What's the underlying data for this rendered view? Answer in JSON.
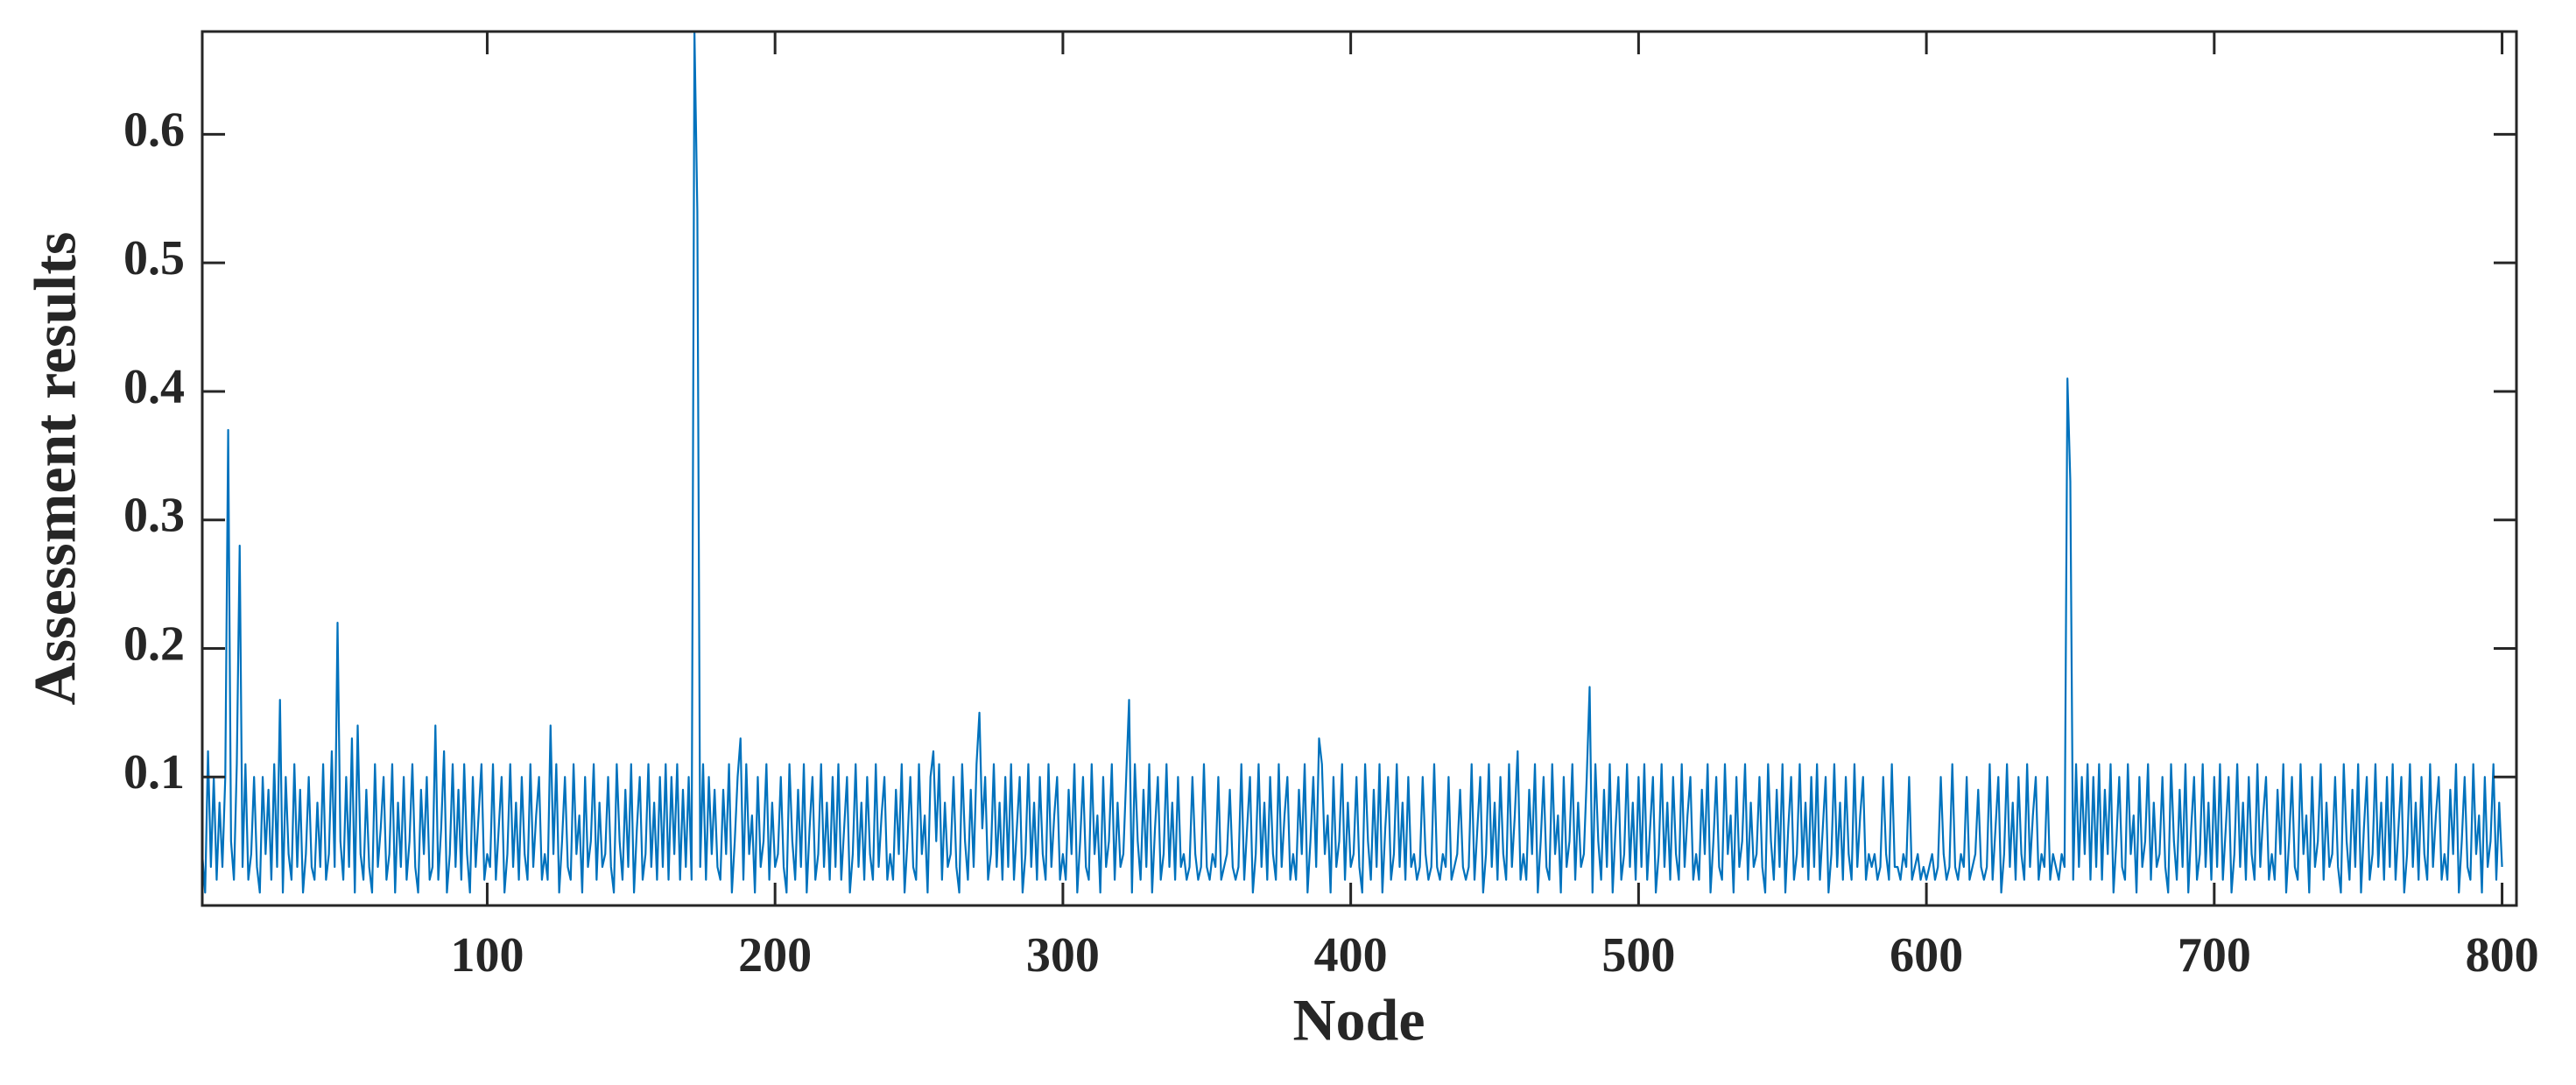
{
  "chart_data": {
    "type": "line",
    "xlabel": "Node",
    "ylabel": "Assessment results",
    "color": "#0072bd",
    "xlim": [
      1,
      805
    ],
    "ylim": [
      0,
      0.68
    ],
    "xticks": [
      100,
      200,
      300,
      400,
      500,
      600,
      700,
      800
    ],
    "yticks": [
      0.1,
      0.2,
      0.3,
      0.4,
      0.5,
      0.6
    ],
    "x": [
      1,
      2,
      3,
      4,
      5,
      6,
      7,
      8,
      9,
      10,
      11,
      12,
      13,
      14,
      15,
      16,
      17,
      18,
      19,
      20,
      21,
      22,
      23,
      24,
      25,
      26,
      27,
      28,
      29,
      30,
      31,
      32,
      33,
      34,
      35,
      36,
      37,
      38,
      39,
      40,
      41,
      42,
      43,
      44,
      45,
      46,
      47,
      48,
      49,
      50,
      51,
      52,
      53,
      54,
      55,
      56,
      57,
      58,
      59,
      60,
      61,
      62,
      63,
      64,
      65,
      66,
      67,
      68,
      69,
      70,
      71,
      72,
      73,
      74,
      75,
      76,
      77,
      78,
      79,
      80,
      81,
      82,
      83,
      84,
      85,
      86,
      87,
      88,
      89,
      90,
      91,
      92,
      93,
      94,
      95,
      96,
      97,
      98,
      99,
      100,
      101,
      102,
      103,
      104,
      105,
      106,
      107,
      108,
      109,
      110,
      111,
      112,
      113,
      114,
      115,
      116,
      117,
      118,
      119,
      120,
      121,
      122,
      123,
      124,
      125,
      126,
      127,
      128,
      129,
      130,
      131,
      132,
      133,
      134,
      135,
      136,
      137,
      138,
      139,
      140,
      141,
      142,
      143,
      144,
      145,
      146,
      147,
      148,
      149,
      150,
      151,
      152,
      153,
      154,
      155,
      156,
      157,
      158,
      159,
      160,
      161,
      162,
      163,
      164,
      165,
      166,
      167,
      168,
      169,
      170,
      171,
      172,
      173,
      174,
      175,
      176,
      177,
      178,
      179,
      180,
      181,
      182,
      183,
      184,
      185,
      186,
      187,
      188,
      189,
      190,
      191,
      192,
      193,
      194,
      195,
      196,
      197,
      198,
      199,
      200,
      201,
      202,
      203,
      204,
      205,
      206,
      207,
      208,
      209,
      210,
      211,
      212,
      213,
      214,
      215,
      216,
      217,
      218,
      219,
      220,
      221,
      222,
      223,
      224,
      225,
      226,
      227,
      228,
      229,
      230,
      231,
      232,
      233,
      234,
      235,
      236,
      237,
      238,
      239,
      240,
      241,
      242,
      243,
      244,
      245,
      246,
      247,
      248,
      249,
      250,
      251,
      252,
      253,
      254,
      255,
      256,
      257,
      258,
      259,
      260,
      261,
      262,
      263,
      264,
      265,
      266,
      267,
      268,
      269,
      270,
      271,
      272,
      273,
      274,
      275,
      276,
      277,
      278,
      279,
      280,
      281,
      282,
      283,
      284,
      285,
      286,
      287,
      288,
      289,
      290,
      291,
      292,
      293,
      294,
      295,
      296,
      297,
      298,
      299,
      300,
      301,
      302,
      303,
      304,
      305,
      306,
      307,
      308,
      309,
      310,
      311,
      312,
      313,
      314,
      315,
      316,
      317,
      318,
      319,
      320,
      321,
      322,
      323,
      324,
      325,
      326,
      327,
      328,
      329,
      330,
      331,
      332,
      333,
      334,
      335,
      336,
      337,
      338,
      339,
      340,
      341,
      342,
      343,
      344,
      345,
      346,
      347,
      348,
      349,
      350,
      351,
      352,
      353,
      354,
      355,
      356,
      357,
      358,
      359,
      360,
      361,
      362,
      363,
      364,
      365,
      366,
      367,
      368,
      369,
      370,
      371,
      372,
      373,
      374,
      375,
      376,
      377,
      378,
      379,
      380,
      381,
      382,
      383,
      384,
      385,
      386,
      387,
      388,
      389,
      390,
      391,
      392,
      393,
      394,
      395,
      396,
      397,
      398,
      399,
      400,
      401,
      402,
      403,
      404,
      405,
      406,
      407,
      408,
      409,
      410,
      411,
      412,
      413,
      414,
      415,
      416,
      417,
      418,
      419,
      420,
      421,
      422,
      423,
      424,
      425,
      426,
      427,
      428,
      429,
      430,
      431,
      432,
      433,
      434,
      435,
      436,
      437,
      438,
      439,
      440,
      441,
      442,
      443,
      444,
      445,
      446,
      447,
      448,
      449,
      450,
      451,
      452,
      453,
      454,
      455,
      456,
      457,
      458,
      459,
      460,
      461,
      462,
      463,
      464,
      465,
      466,
      467,
      468,
      469,
      470,
      471,
      472,
      473,
      474,
      475,
      476,
      477,
      478,
      479,
      480,
      481,
      482,
      483,
      484,
      485,
      486,
      487,
      488,
      489,
      490,
      491,
      492,
      493,
      494,
      495,
      496,
      497,
      498,
      499,
      500,
      501,
      502,
      503,
      504,
      505,
      506,
      507,
      508,
      509,
      510,
      511,
      512,
      513,
      514,
      515,
      516,
      517,
      518,
      519,
      520,
      521,
      522,
      523,
      524,
      525,
      526,
      527,
      528,
      529,
      530,
      531,
      532,
      533,
      534,
      535,
      536,
      537,
      538,
      539,
      540,
      541,
      542,
      543,
      544,
      545,
      546,
      547,
      548,
      549,
      550,
      551,
      552,
      553,
      554,
      555,
      556,
      557,
      558,
      559,
      560,
      561,
      562,
      563,
      564,
      565,
      566,
      567,
      568,
      569,
      570,
      571,
      572,
      573,
      574,
      575,
      576,
      577,
      578,
      579,
      580,
      581,
      582,
      583,
      584,
      585,
      586,
      587,
      588,
      589,
      590,
      591,
      592,
      593,
      594,
      595,
      596,
      597,
      598,
      599,
      600,
      601,
      602,
      603,
      604,
      605,
      606,
      607,
      608,
      609,
      610,
      611,
      612,
      613,
      614,
      615,
      616,
      617,
      618,
      619,
      620,
      621,
      622,
      623,
      624,
      625,
      626,
      627,
      628,
      629,
      630,
      631,
      632,
      633,
      634,
      635,
      636,
      637,
      638,
      639,
      640,
      641,
      642,
      643,
      644,
      645,
      646,
      647,
      648,
      649,
      650,
      651,
      652,
      653,
      654,
      655,
      656,
      657,
      658,
      659,
      660,
      661,
      662,
      663,
      664,
      665,
      666,
      667,
      668,
      669,
      670,
      671,
      672,
      673,
      674,
      675,
      676,
      677,
      678,
      679,
      680,
      681,
      682,
      683,
      684,
      685,
      686,
      687,
      688,
      689,
      690,
      691,
      692,
      693,
      694,
      695,
      696,
      697,
      698,
      699,
      700,
      701,
      702,
      703,
      704,
      705,
      706,
      707,
      708,
      709,
      710,
      711,
      712,
      713,
      714,
      715,
      716,
      717,
      718,
      719,
      720,
      721,
      722,
      723,
      724,
      725,
      726,
      727,
      728,
      729,
      730,
      731,
      732,
      733,
      734,
      735,
      736,
      737,
      738,
      739,
      740,
      741,
      742,
      743,
      744,
      745,
      746,
      747,
      748,
      749,
      750,
      751,
      752,
      753,
      754,
      755,
      756,
      757,
      758,
      759,
      760,
      761,
      762,
      763,
      764,
      765,
      766,
      767,
      768,
      769,
      770,
      771,
      772,
      773,
      774,
      775,
      776,
      777,
      778,
      779,
      780,
      781,
      782,
      783,
      784,
      785,
      786,
      787,
      788,
      789,
      790,
      791,
      792,
      793,
      794,
      795,
      796,
      797,
      798,
      799,
      800
    ],
    "values": [
      0.04,
      0.01,
      0.12,
      0.03,
      0.1,
      0.02,
      0.08,
      0.03,
      0.1,
      0.37,
      0.05,
      0.02,
      0.11,
      0.28,
      0.03,
      0.11,
      0.02,
      0.04,
      0.1,
      0.03,
      0.01,
      0.1,
      0.04,
      0.09,
      0.02,
      0.11,
      0.03,
      0.16,
      0.01,
      0.1,
      0.04,
      0.02,
      0.11,
      0.03,
      0.09,
      0.01,
      0.04,
      0.1,
      0.03,
      0.02,
      0.08,
      0.03,
      0.11,
      0.02,
      0.04,
      0.12,
      0.03,
      0.22,
      0.05,
      0.02,
      0.1,
      0.03,
      0.13,
      0.01,
      0.14,
      0.04,
      0.02,
      0.09,
      0.03,
      0.01,
      0.11,
      0.03,
      0.06,
      0.1,
      0.02,
      0.04,
      0.11,
      0.01,
      0.08,
      0.03,
      0.1,
      0.02,
      0.05,
      0.11,
      0.03,
      0.01,
      0.09,
      0.04,
      0.1,
      0.02,
      0.03,
      0.14,
      0.02,
      0.06,
      0.12,
      0.01,
      0.04,
      0.11,
      0.03,
      0.09,
      0.02,
      0.11,
      0.04,
      0.01,
      0.1,
      0.03,
      0.07,
      0.11,
      0.02,
      0.04,
      0.03,
      0.11,
      0.02,
      0.06,
      0.1,
      0.01,
      0.04,
      0.11,
      0.03,
      0.08,
      0.02,
      0.1,
      0.04,
      0.02,
      0.11,
      0.03,
      0.07,
      0.1,
      0.02,
      0.04,
      0.02,
      0.14,
      0.04,
      0.11,
      0.01,
      0.05,
      0.1,
      0.03,
      0.02,
      0.11,
      0.04,
      0.07,
      0.01,
      0.1,
      0.03,
      0.05,
      0.11,
      0.02,
      0.08,
      0.03,
      0.04,
      0.1,
      0.03,
      0.01,
      0.11,
      0.05,
      0.02,
      0.09,
      0.03,
      0.11,
      0.01,
      0.06,
      0.1,
      0.02,
      0.04,
      0.11,
      0.03,
      0.08,
      0.02,
      0.1,
      0.03,
      0.11,
      0.02,
      0.1,
      0.04,
      0.11,
      0.02,
      0.09,
      0.03,
      0.1,
      0.02,
      0.68,
      0.54,
      0.03,
      0.11,
      0.02,
      0.1,
      0.04,
      0.09,
      0.03,
      0.02,
      0.09,
      0.04,
      0.11,
      0.01,
      0.05,
      0.1,
      0.13,
      0.02,
      0.11,
      0.04,
      0.07,
      0.01,
      0.1,
      0.03,
      0.05,
      0.11,
      0.02,
      0.08,
      0.03,
      0.04,
      0.1,
      0.03,
      0.01,
      0.11,
      0.05,
      0.02,
      0.09,
      0.03,
      0.11,
      0.01,
      0.06,
      0.1,
      0.02,
      0.04,
      0.11,
      0.03,
      0.08,
      0.02,
      0.1,
      0.03,
      0.11,
      0.02,
      0.06,
      0.1,
      0.01,
      0.04,
      0.11,
      0.03,
      0.08,
      0.02,
      0.1,
      0.04,
      0.02,
      0.11,
      0.03,
      0.07,
      0.1,
      0.02,
      0.04,
      0.02,
      0.09,
      0.04,
      0.11,
      0.01,
      0.05,
      0.1,
      0.03,
      0.02,
      0.11,
      0.04,
      0.07,
      0.01,
      0.1,
      0.12,
      0.05,
      0.11,
      0.02,
      0.08,
      0.03,
      0.04,
      0.1,
      0.03,
      0.01,
      0.11,
      0.05,
      0.02,
      0.09,
      0.03,
      0.11,
      0.15,
      0.06,
      0.1,
      0.02,
      0.04,
      0.11,
      0.03,
      0.08,
      0.02,
      0.1,
      0.03,
      0.11,
      0.02,
      0.06,
      0.1,
      0.01,
      0.04,
      0.11,
      0.03,
      0.08,
      0.02,
      0.1,
      0.04,
      0.02,
      0.11,
      0.03,
      0.07,
      0.1,
      0.02,
      0.04,
      0.02,
      0.09,
      0.04,
      0.11,
      0.01,
      0.05,
      0.1,
      0.03,
      0.02,
      0.11,
      0.04,
      0.07,
      0.01,
      0.1,
      0.03,
      0.05,
      0.11,
      0.02,
      0.08,
      0.03,
      0.04,
      0.1,
      0.16,
      0.01,
      0.11,
      0.05,
      0.02,
      0.09,
      0.03,
      0.11,
      0.01,
      0.06,
      0.1,
      0.02,
      0.04,
      0.11,
      0.03,
      0.08,
      0.02,
      0.1,
      0.03,
      0.04,
      0.02,
      0.03,
      0.1,
      0.04,
      0.02,
      0.03,
      0.11,
      0.03,
      0.02,
      0.04,
      0.03,
      0.1,
      0.02,
      0.03,
      0.04,
      0.09,
      0.03,
      0.02,
      0.03,
      0.11,
      0.02,
      0.06,
      0.1,
      0.01,
      0.04,
      0.11,
      0.03,
      0.08,
      0.02,
      0.1,
      0.04,
      0.02,
      0.11,
      0.03,
      0.07,
      0.1,
      0.02,
      0.04,
      0.02,
      0.09,
      0.04,
      0.11,
      0.01,
      0.05,
      0.1,
      0.03,
      0.13,
      0.11,
      0.04,
      0.07,
      0.01,
      0.1,
      0.03,
      0.05,
      0.11,
      0.02,
      0.08,
      0.03,
      0.04,
      0.1,
      0.03,
      0.01,
      0.11,
      0.05,
      0.02,
      0.09,
      0.03,
      0.11,
      0.01,
      0.06,
      0.1,
      0.02,
      0.04,
      0.11,
      0.03,
      0.08,
      0.02,
      0.1,
      0.03,
      0.04,
      0.02,
      0.03,
      0.1,
      0.04,
      0.02,
      0.03,
      0.11,
      0.03,
      0.02,
      0.04,
      0.03,
      0.1,
      0.02,
      0.03,
      0.04,
      0.09,
      0.03,
      0.02,
      0.03,
      0.11,
      0.02,
      0.06,
      0.1,
      0.01,
      0.04,
      0.11,
      0.03,
      0.08,
      0.02,
      0.1,
      0.04,
      0.02,
      0.11,
      0.03,
      0.07,
      0.12,
      0.02,
      0.04,
      0.02,
      0.09,
      0.04,
      0.11,
      0.01,
      0.05,
      0.1,
      0.03,
      0.02,
      0.11,
      0.04,
      0.07,
      0.01,
      0.1,
      0.03,
      0.05,
      0.11,
      0.02,
      0.08,
      0.03,
      0.04,
      0.1,
      0.17,
      0.01,
      0.11,
      0.05,
      0.02,
      0.09,
      0.03,
      0.11,
      0.01,
      0.06,
      0.1,
      0.02,
      0.04,
      0.11,
      0.03,
      0.08,
      0.02,
      0.1,
      0.03,
      0.11,
      0.02,
      0.06,
      0.1,
      0.01,
      0.04,
      0.11,
      0.03,
      0.08,
      0.02,
      0.1,
      0.04,
      0.02,
      0.11,
      0.03,
      0.07,
      0.1,
      0.02,
      0.04,
      0.02,
      0.09,
      0.04,
      0.11,
      0.01,
      0.05,
      0.1,
      0.03,
      0.02,
      0.11,
      0.04,
      0.07,
      0.01,
      0.1,
      0.03,
      0.05,
      0.11,
      0.02,
      0.08,
      0.03,
      0.04,
      0.1,
      0.03,
      0.01,
      0.11,
      0.05,
      0.02,
      0.09,
      0.03,
      0.11,
      0.01,
      0.06,
      0.1,
      0.02,
      0.04,
      0.11,
      0.03,
      0.08,
      0.02,
      0.1,
      0.03,
      0.11,
      0.02,
      0.06,
      0.1,
      0.01,
      0.04,
      0.11,
      0.03,
      0.08,
      0.02,
      0.1,
      0.04,
      0.02,
      0.11,
      0.03,
      0.07,
      0.1,
      0.02,
      0.04,
      0.03,
      0.04,
      0.02,
      0.03,
      0.1,
      0.04,
      0.02,
      0.11,
      0.03,
      0.03,
      0.02,
      0.04,
      0.03,
      0.1,
      0.02,
      0.03,
      0.04,
      0.02,
      0.03,
      0.02,
      0.03,
      0.04,
      0.02,
      0.03,
      0.1,
      0.04,
      0.02,
      0.03,
      0.11,
      0.03,
      0.02,
      0.04,
      0.03,
      0.1,
      0.02,
      0.03,
      0.04,
      0.09,
      0.03,
      0.02,
      0.03,
      0.11,
      0.02,
      0.06,
      0.1,
      0.01,
      0.04,
      0.11,
      0.03,
      0.08,
      0.02,
      0.1,
      0.04,
      0.02,
      0.11,
      0.03,
      0.07,
      0.1,
      0.02,
      0.04,
      0.03,
      0.1,
      0.02,
      0.04,
      0.03,
      0.02,
      0.04,
      0.03,
      0.41,
      0.33,
      0.02,
      0.11,
      0.03,
      0.1,
      0.04,
      0.11,
      0.02,
      0.1,
      0.03,
      0.11,
      0.02,
      0.09,
      0.04,
      0.11,
      0.01,
      0.05,
      0.1,
      0.03,
      0.02,
      0.11,
      0.04,
      0.07,
      0.01,
      0.1,
      0.03,
      0.05,
      0.11,
      0.02,
      0.08,
      0.03,
      0.04,
      0.1,
      0.03,
      0.01,
      0.11,
      0.05,
      0.02,
      0.09,
      0.03,
      0.11,
      0.01,
      0.06,
      0.1,
      0.02,
      0.04,
      0.11,
      0.03,
      0.08,
      0.02,
      0.1,
      0.03,
      0.11,
      0.02,
      0.06,
      0.1,
      0.01,
      0.04,
      0.11,
      0.03,
      0.08,
      0.02,
      0.1,
      0.04,
      0.02,
      0.11,
      0.03,
      0.07,
      0.1,
      0.02,
      0.04,
      0.02,
      0.09,
      0.04,
      0.11,
      0.01,
      0.05,
      0.1,
      0.03,
      0.02,
      0.11,
      0.04,
      0.07,
      0.01,
      0.1,
      0.03,
      0.05,
      0.11,
      0.02,
      0.08,
      0.03,
      0.04,
      0.1,
      0.03,
      0.01,
      0.11,
      0.05,
      0.02,
      0.09,
      0.03,
      0.11,
      0.01,
      0.06,
      0.1,
      0.02,
      0.04,
      0.11,
      0.03,
      0.08,
      0.02,
      0.1,
      0.03,
      0.11,
      0.02,
      0.06,
      0.1,
      0.01,
      0.04,
      0.11,
      0.03,
      0.08,
      0.02,
      0.1,
      0.04,
      0.02,
      0.11,
      0.03,
      0.07,
      0.1,
      0.02,
      0.04,
      0.02,
      0.09,
      0.04,
      0.11,
      0.01,
      0.05,
      0.1,
      0.03,
      0.02,
      0.11,
      0.04,
      0.07,
      0.01,
      0.1,
      0.03,
      0.05,
      0.11,
      0.02,
      0.08,
      0.03
    ]
  }
}
